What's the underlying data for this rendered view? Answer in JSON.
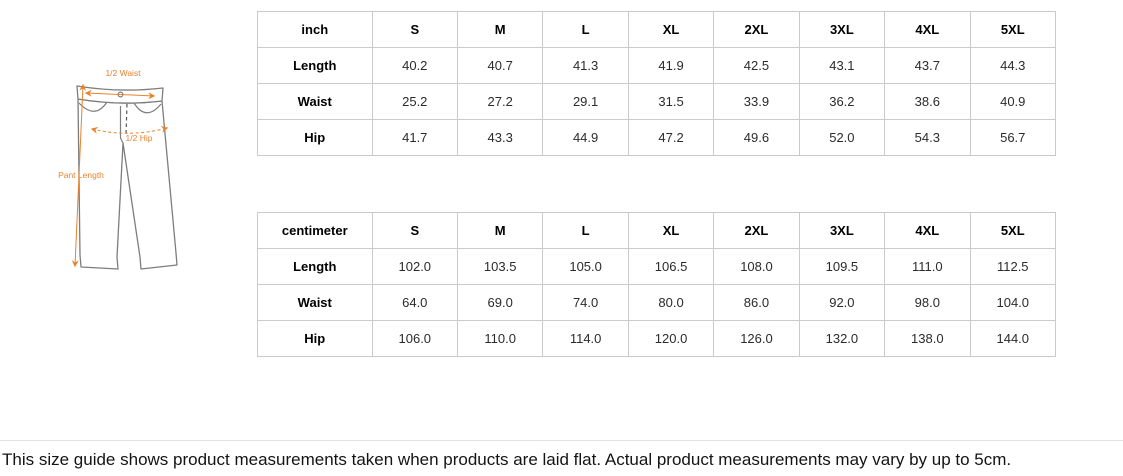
{
  "diagram": {
    "labels": {
      "waist": "1/2 Waist",
      "hip": "1/2 Hip",
      "length": "Pant Length"
    },
    "accent_color": "#E8832D",
    "outline_color": "#7D7D7D"
  },
  "tables": [
    {
      "unit": "inch",
      "sizes": [
        "S",
        "M",
        "L",
        "XL",
        "2XL",
        "3XL",
        "4XL",
        "5XL"
      ],
      "rows": [
        {
          "label": "Length",
          "values": [
            "40.2",
            "40.7",
            "41.3",
            "41.9",
            "42.5",
            "43.1",
            "43.7",
            "44.3"
          ]
        },
        {
          "label": "Waist",
          "values": [
            "25.2",
            "27.2",
            "29.1",
            "31.5",
            "33.9",
            "36.2",
            "38.6",
            "40.9"
          ]
        },
        {
          "label": "Hip",
          "values": [
            "41.7",
            "43.3",
            "44.9",
            "47.2",
            "49.6",
            "52.0",
            "54.3",
            "56.7"
          ]
        }
      ]
    },
    {
      "unit": "centimeter",
      "sizes": [
        "S",
        "M",
        "L",
        "XL",
        "2XL",
        "3XL",
        "4XL",
        "5XL"
      ],
      "rows": [
        {
          "label": "Length",
          "values": [
            "102.0",
            "103.5",
            "105.0",
            "106.5",
            "108.0",
            "109.5",
            "111.0",
            "112.5"
          ]
        },
        {
          "label": "Waist",
          "values": [
            "64.0",
            "69.0",
            "74.0",
            "80.0",
            "86.0",
            "92.0",
            "98.0",
            "104.0"
          ]
        },
        {
          "label": "Hip",
          "values": [
            "106.0",
            "110.0",
            "114.0",
            "120.0",
            "126.0",
            "132.0",
            "138.0",
            "144.0"
          ]
        }
      ]
    }
  ],
  "footer": {
    "note": "This size guide shows product measurements taken when products are laid flat. Actual product measurements may vary by up to 5cm.",
    "border_color": "#CBCBCB"
  }
}
